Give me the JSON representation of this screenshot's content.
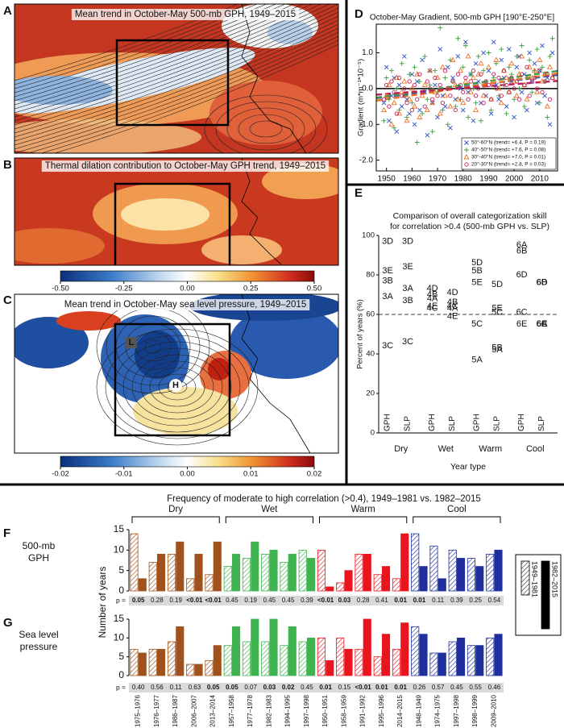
{
  "panel_labels": [
    "A",
    "B",
    "C",
    "D",
    "E",
    "F",
    "G"
  ],
  "maps": [
    {
      "title": "Mean trend in October-May 500-mb GPH, 1949–2015"
    },
    {
      "title": "Thermal dilation contribution to October-May GPH trend, 1949–2015",
      "colorbar": {
        "lim": [
          -0.5,
          0.5
        ],
        "ticks": [
          {
            "value": -0.5,
            "label": "-0.50"
          },
          -0.25,
          {
            "value": 0,
            "label": "0.00"
          },
          0.25,
          {
            "value": 0.5,
            "label": "0.50"
          }
        ]
      }
    },
    {
      "title": "Mean trend in October-May sea level pressure, 1949–2015",
      "box_labels": [
        "L",
        "H"
      ],
      "colorbar": {
        "lim": [
          -0.02,
          0.02
        ],
        "ticks": [
          -0.02,
          -0.01,
          {
            "value": 0,
            "label": "0.00"
          },
          0.01,
          0.02
        ]
      }
    }
  ],
  "chart_data": [
    {
      "type": "scatter",
      "title": "October-May  Gradient, 500-mb GPH [190°E-250°E]",
      "ylabel": "Gradient (m*m⁻¹*10⁻⁵)",
      "x": [
        1949,
        1950,
        1951,
        1952,
        1953,
        1954,
        1955,
        1956,
        1957,
        1958,
        1959,
        1960,
        1961,
        1962,
        1963,
        1964,
        1965,
        1966,
        1967,
        1968,
        1969,
        1970,
        1971,
        1972,
        1973,
        1974,
        1975,
        1976,
        1977,
        1978,
        1979,
        1980,
        1981,
        1982,
        1983,
        1984,
        1985,
        1986,
        1987,
        1988,
        1989,
        1990,
        1991,
        1992,
        1993,
        1994,
        1995,
        1996,
        1997,
        1998,
        1999,
        2000,
        2001,
        2002,
        2003,
        2004,
        2005,
        2006,
        2007,
        2008,
        2009,
        2010,
        2011,
        2012,
        2013,
        2014,
        2015
      ],
      "xlim": [
        1946,
        2017
      ],
      "xticks": [
        1950,
        1960,
        1970,
        1980,
        1990,
        2000,
        2010
      ],
      "ylim": [
        -2.3,
        1.8
      ],
      "yticks": [
        {
          "value": -2,
          "label": "-2.0"
        },
        {
          "value": -1,
          "label": "-1.0"
        },
        {
          "value": 0,
          "label": "0.0"
        },
        {
          "value": 1,
          "label": "1.0"
        }
      ],
      "series": [
        {
          "name": "50°-60°N (trend= +6.4, P = 0.19)",
          "color": "#2b4fc4",
          "marker": "x",
          "values": [
            -0.4,
            0.6,
            -0.9,
            -0.2,
            0.3,
            -1.2,
            0.1,
            -0.5,
            0.9,
            -0.3,
            -0.7,
            0.4,
            -1.0,
            0.2,
            -0.6,
            0.8,
            -0.1,
            -1.3,
            0.5,
            -0.4,
            0.1,
            -0.8,
            1.1,
            -0.2,
            -0.5,
            0.6,
            -1.1,
            0.3,
            -0.3,
            0.9,
            0.0,
            -0.6,
            1.3,
            -0.1,
            0.4,
            -0.9,
            0.7,
            0.2,
            -0.4,
            1.0,
            -0.2,
            0.5,
            -0.7,
            1.3,
            0.1,
            -0.3,
            0.8,
            0.3,
            -0.5,
            1.1,
            0.2,
            -0.8,
            0.6,
            0.9,
            -0.1,
            0.4,
            -0.6,
            1.0,
            0.2,
            0.7,
            -0.4,
            0.5,
            1.2,
            -0.2,
            0.3,
            -1.0,
            1.0
          ]
        },
        {
          "name": "40°-50°N (trend= +7.6, P = 0.08)",
          "color": "#3f9a3f",
          "marker": "plus",
          "values": [
            -0.9,
            0.3,
            -0.3,
            0.5,
            -1.1,
            0.0,
            -0.6,
            0.7,
            -0.2,
            -0.8,
            0.4,
            -0.4,
            0.6,
            -1.5,
            0.2,
            -0.7,
            0.9,
            -0.3,
            0.1,
            -1.2,
            0.5,
            -0.1,
            1.7,
            -0.6,
            0.3,
            -1.0,
            0.8,
            0.2,
            -0.5,
            1.4,
            -0.3,
            0.6,
            1.2,
            -0.8,
            0.4,
            0.0,
            -0.4,
            0.9,
            -0.9,
            0.5,
            0.2,
            1.0,
            -0.6,
            0.3,
            0.7,
            -0.2,
            1.1,
            0.1,
            -0.7,
            0.6,
            0.4,
            -0.3,
            0.9,
            0.0,
            1.2,
            -0.5,
            0.3,
            0.8,
            -0.1,
            0.5,
            1.1,
            -0.4,
            0.6,
            0.2,
            -0.8,
            0.9,
            1.4
          ]
        },
        {
          "name": "30°-40°N (trend= +7.0, P = 0.01)",
          "color": "#f07020",
          "marker": "triangle",
          "values": [
            -0.6,
            -0.2,
            0.1,
            -1.0,
            -0.4,
            0.3,
            -0.7,
            -0.1,
            0.2,
            -0.9,
            -0.3,
            0.0,
            -0.5,
            0.4,
            -0.8,
            -0.2,
            0.1,
            -0.6,
            0.5,
            -0.4,
            -0.1,
            0.3,
            -0.7,
            0.6,
            -0.2,
            0.0,
            -0.5,
            0.8,
            0.1,
            -0.3,
            0.5,
            -0.4,
            0.2,
            0.9,
            -0.1,
            0.3,
            -0.6,
            0.4,
            0.7,
            -0.2,
            0.1,
            0.6,
            -0.3,
            0.2,
            0.8,
            0.0,
            -0.4,
            0.5,
            0.3,
            -0.1,
            0.7,
            0.2,
            -0.2,
            0.4,
            0.9,
            0.1,
            -0.3,
            0.6,
            0.3,
            0.5,
            -0.1,
            0.8,
            0.2,
            0.4,
            -0.5,
            0.6,
            0.3
          ]
        },
        {
          "name": "20°-30°N (trend= +2.8, P = 0.03)",
          "color": "#c0205a",
          "marker": "circle",
          "values": [
            -0.3,
            0.1,
            -0.5,
            0.2,
            -0.1,
            -0.7,
            0.3,
            -0.2,
            0.0,
            -0.4,
            0.2,
            -0.6,
            0.1,
            -0.3,
            0.4,
            -0.1,
            -0.5,
            0.2,
            0.0,
            -0.3,
            0.3,
            -0.2,
            0.1,
            -0.4,
            0.5,
            0.0,
            -0.2,
            0.2,
            -0.6,
            0.4,
            0.1,
            -0.1,
            0.3,
            -0.3,
            0.2,
            0.5,
            -0.2,
            0.0,
            0.4,
            -0.4,
            0.2,
            0.1,
            -0.3,
            0.4,
            0.0,
            0.3,
            -0.2,
            0.5,
            0.1,
            -0.1,
            0.3,
            0.0,
            0.2,
            -0.3,
            0.4,
            0.1,
            0.6,
            -0.2,
            0.2,
            0.3,
            0.0,
            0.5,
            -0.1,
            0.2,
            0.4,
            -0.3,
            0.3
          ]
        }
      ]
    },
    {
      "type": "labeled_points",
      "title": [
        "Comparison of overall categorization skill",
        "for correlation >0.4 (500-mb GPH vs. SLP)"
      ],
      "ylabel": "Percent of years (%)",
      "xlabel": "Year type",
      "categories": [
        "Dry",
        "Wet",
        "Warm",
        "Cool"
      ],
      "subcategories": [
        "GPH",
        "SLP"
      ],
      "ylim": [
        0,
        100
      ],
      "yticks": [
        0,
        20,
        40,
        60,
        80,
        100
      ],
      "reference_line": 60,
      "groups": [
        {
          "color": "#b5602a",
          "columns": [
            [
              {
                "label": "3D",
                "value": 97
              },
              {
                "label": "3E",
                "value": 82
              },
              {
                "label": "3B",
                "value": 77
              },
              {
                "label": "3A",
                "value": 69
              },
              {
                "label": "3C",
                "value": 44
              }
            ],
            [
              {
                "label": "3D",
                "value": 97
              },
              {
                "label": "3E",
                "value": 84
              },
              {
                "label": "3A",
                "value": 73
              },
              {
                "label": "3B",
                "value": 67
              },
              {
                "label": "3C",
                "value": 46
              }
            ]
          ]
        },
        {
          "color": "#5cb85c",
          "columns": [
            [
              {
                "label": "4D",
                "value": 73
              },
              {
                "label": "4B",
                "value": 70
              },
              {
                "label": "4A",
                "value": 68
              },
              {
                "label": "4E",
                "value": 64
              },
              {
                "label": "4C",
                "value": 63
              }
            ],
            [
              {
                "label": "4D",
                "value": 71
              },
              {
                "label": "4B",
                "value": 66
              },
              {
                "label": "4C",
                "value": 64
              },
              {
                "label": "4A",
                "value": 63
              },
              {
                "label": "4E",
                "value": 59
              }
            ]
          ]
        },
        {
          "color": "#e02020",
          "columns": [
            [
              {
                "label": "5D",
                "value": 86
              },
              {
                "label": "5B",
                "value": 82
              },
              {
                "label": "5E",
                "value": 76
              },
              {
                "label": "5C",
                "value": 55
              },
              {
                "label": "5A",
                "value": 37
              }
            ],
            [
              {
                "label": "5D",
                "value": 75
              },
              {
                "label": "5E",
                "value": 63
              },
              {
                "label": "5C",
                "value": 61
              },
              {
                "label": "5B",
                "value": 43
              },
              {
                "label": "5A",
                "value": 42
              }
            ]
          ]
        },
        {
          "color": "#2a3fb0",
          "columns": [
            [
              {
                "label": "6A",
                "value": 95
              },
              {
                "label": "6B",
                "value": 92
              },
              {
                "label": "6D",
                "value": 80
              },
              {
                "label": "6C",
                "value": 61
              },
              {
                "label": "6E",
                "value": 55
              }
            ],
            [
              {
                "label": "6B",
                "value": 76
              },
              {
                "label": "6D",
                "value": 76
              },
              {
                "label": "6C",
                "value": 55
              },
              {
                "label": "6E",
                "value": 55
              },
              {
                "label": "6A",
                "value": 55
              }
            ]
          ]
        }
      ]
    },
    {
      "type": "grouped_bar",
      "title": "Frequency of moderate to high correlation (>0.4), 1949–1981 vs. 1982–2015",
      "row_label": [
        "500-mb",
        "GPH"
      ],
      "ylabel": "Number of years",
      "groups": [
        {
          "name": "Dry",
          "color": "#a0521d"
        },
        {
          "name": "Wet",
          "color": "#3fb34f"
        },
        {
          "name": "Warm",
          "color": "#e8141e"
        },
        {
          "name": "Cool",
          "color": "#1f2f9c"
        }
      ],
      "ylim": [
        0,
        15
      ],
      "yticks": [
        0,
        5,
        10,
        15
      ],
      "series": [
        {
          "name": "1949–1981",
          "style": "hatched",
          "values": [
            14,
            7,
            9,
            3,
            4,
            6,
            8,
            9,
            7,
            10,
            10,
            2,
            9,
            4,
            3,
            14,
            11,
            10,
            8,
            9
          ]
        },
        {
          "name": "1982–2015",
          "style": "solid",
          "values": [
            3,
            9,
            12,
            9,
            12,
            9,
            12,
            10,
            9,
            8,
            1,
            5,
            9,
            6,
            14,
            6,
            3,
            8,
            6,
            10
          ]
        }
      ],
      "p_label": "p =",
      "p_values": [
        "0.05",
        "0.28",
        "0.19",
        "<0.01",
        "<0.01",
        "0.45",
        "0.19",
        "0.45",
        "0.45",
        "0.39",
        "<0.01",
        "0.03",
        "0.28",
        "0.41",
        "0.01",
        "0.01",
        "0.11",
        "0.39",
        "0.25",
        "0.54"
      ],
      "p_bold": [
        true,
        false,
        false,
        true,
        true,
        false,
        false,
        false,
        false,
        false,
        true,
        true,
        false,
        false,
        true,
        true,
        false,
        false,
        false,
        false
      ]
    },
    {
      "type": "grouped_bar",
      "row_label": [
        "Sea level",
        "pressure"
      ],
      "categories": [
        "1975–1976",
        "1976–1977",
        "1986–1987",
        "2006–2007",
        "2013–2014",
        "1957–1958",
        "1977–1978",
        "1982–1983",
        "1994–1995",
        "1997–1998",
        "1950–1951",
        "1958–1959",
        "1991–1992",
        "1995–1996",
        "2014–2015",
        "1948–1949",
        "1974–1975",
        "1997–1998",
        "1998–1999",
        "2009–2010"
      ],
      "groups": [
        {
          "color": "#a0521d"
        },
        {
          "color": "#3fb34f"
        },
        {
          "color": "#e8141e"
        },
        {
          "color": "#1f2f9c"
        }
      ],
      "ylim": [
        0,
        15
      ],
      "yticks": [
        0,
        5,
        10,
        15
      ],
      "series": [
        {
          "style": "hatched",
          "values": [
            7,
            7,
            9,
            3,
            4,
            8,
            9,
            9,
            8,
            9,
            10,
            10,
            7,
            5,
            7,
            13,
            6,
            9,
            8,
            10
          ]
        },
        {
          "style": "solid",
          "values": [
            6,
            7,
            13,
            3,
            8,
            13,
            15,
            15,
            13,
            10,
            4,
            7,
            15,
            11,
            14,
            11,
            6,
            10,
            8,
            11
          ]
        }
      ],
      "p_label": "p =",
      "p_values": [
        "0.40",
        "0.56",
        "0.11",
        "0.63",
        "0.05",
        "0.05",
        "0.07",
        "0.03",
        "0.02",
        "0.45",
        "0.01",
        "0.15",
        "<0.01",
        "0.01",
        "0.01",
        "0.26",
        "0.57",
        "0.45",
        "0.55",
        "0.46"
      ],
      "p_bold": [
        false,
        false,
        false,
        false,
        true,
        true,
        false,
        true,
        true,
        false,
        true,
        false,
        true,
        true,
        true,
        false,
        false,
        false,
        false,
        false
      ]
    }
  ]
}
